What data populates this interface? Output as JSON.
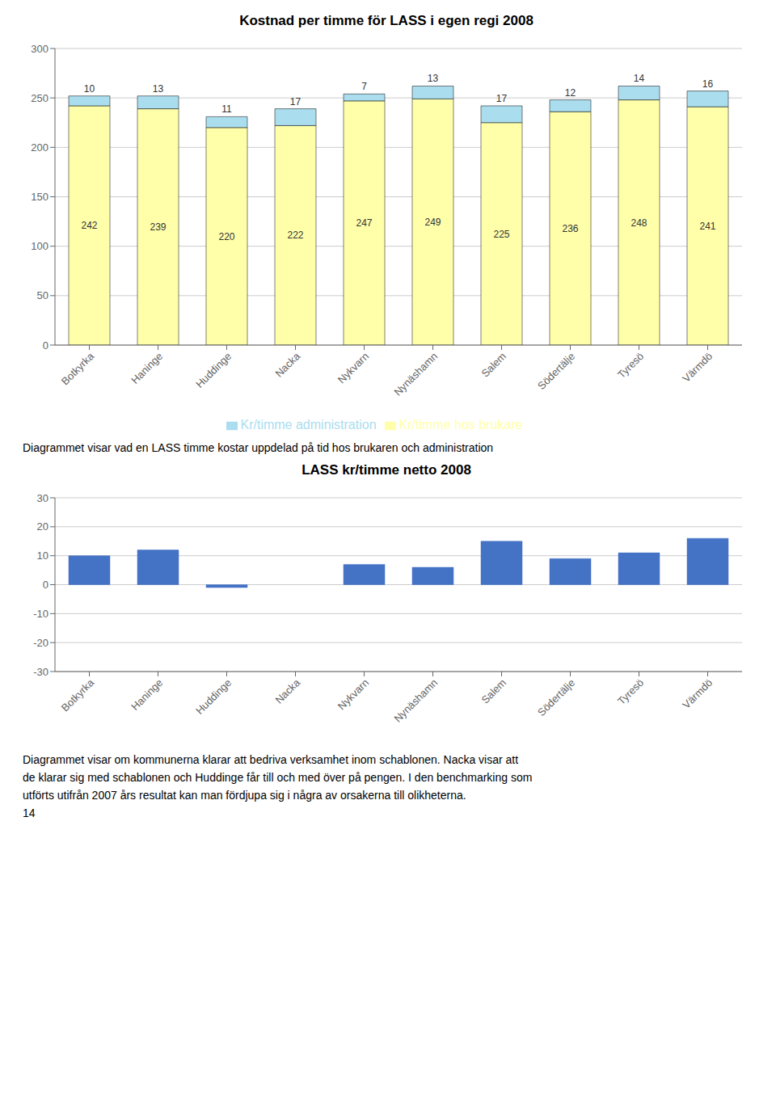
{
  "chart_data": [
    {
      "type": "bar",
      "stacked": true,
      "title": "Kostnad per timme för LASS i egen regi 2008",
      "categories": [
        "Botkyrka",
        "Haninge",
        "Huddinge",
        "Nacka",
        "Nykvarn",
        "Nynäshamn",
        "Salem",
        "Södertälje",
        "Tyresö",
        "Värmdö"
      ],
      "series": [
        {
          "name": "Kr/timme hos brukare",
          "color": "#ffffaa",
          "values": [
            242,
            239,
            220,
            222,
            247,
            249,
            225,
            236,
            248,
            241
          ]
        },
        {
          "name": "Kr/timme administration",
          "color": "#aaddee",
          "values": [
            10,
            13,
            11,
            17,
            7,
            13,
            17,
            12,
            14,
            16
          ]
        }
      ],
      "ylim": [
        0,
        300
      ],
      "yticks": [
        0,
        50,
        100,
        150,
        200,
        250,
        300
      ],
      "grid": true,
      "data_labels": true,
      "legend": "bottom",
      "annotations": [
        "Diagrammet visar vad en LASS timme kostar uppdelad på tid hos brukaren och administration"
      ]
    },
    {
      "type": "bar",
      "title": "LASS kr/timme netto 2008",
      "categories": [
        "Botkyrka",
        "Haninge",
        "Huddinge",
        "Nacka",
        "Nykvarn",
        "Nynäshamn",
        "Salem",
        "Södertälje",
        "Tyresö",
        "Värmdö"
      ],
      "values": [
        10,
        12,
        -1,
        0,
        7,
        6,
        15,
        9,
        11,
        16
      ],
      "color": "#4472c4",
      "ylim": [
        -30,
        30
      ],
      "yticks": [
        -30,
        -20,
        -10,
        0,
        10,
        20,
        30
      ],
      "grid": true,
      "data_labels": false,
      "annotations": [
        "Diagrammet visar om kommunerna klarar att bedriva verksamhet inom schablonen. Nacka visar att",
        "de klarar sig med schablonen och Huddinge får till och med över på pengen. I den benchmarking som",
        "utförts utifrån 2007 års resultat kan man fördjupa sig i några av orsakerna till olikheterna.",
        "14"
      ]
    }
  ]
}
